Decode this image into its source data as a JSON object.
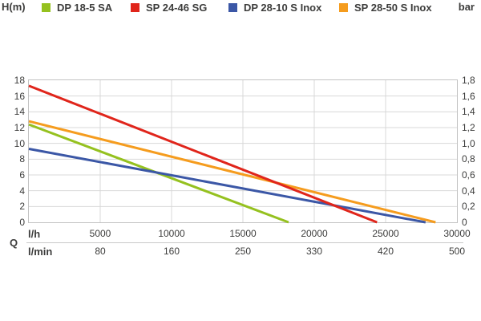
{
  "colors": {
    "text": "#3C3C3B",
    "grid": "#D8D8D8",
    "plot_border": "#C2C2C2",
    "green": "#95C11F",
    "red": "#E0251B",
    "blue": "#3B57A6",
    "orange": "#F59C1E"
  },
  "legend": {
    "left_axis_title": "H(m)",
    "right_axis_title": "bar",
    "items": [
      {
        "label": "DP 18-5 SA",
        "color": "#95C11F"
      },
      {
        "label": "SP 24-46 SG",
        "color": "#E0251B"
      },
      {
        "label": "DP 28-10 S Inox",
        "color": "#3B57A6"
      },
      {
        "label": "SP 28-50 S Inox",
        "color": "#F59C1E"
      }
    ]
  },
  "x_axis": {
    "label": "Q",
    "unit_rows": [
      {
        "unit": "l/h",
        "ticks": [
          5000,
          10000,
          15000,
          20000,
          25000,
          30000
        ]
      },
      {
        "unit": "l/min",
        "ticks": [
          80,
          160,
          250,
          330,
          420,
          500
        ]
      }
    ]
  },
  "chart_data": {
    "type": "line",
    "title": "",
    "xlabel": "Q",
    "x_units": [
      "l/h",
      "l/min"
    ],
    "xlim_lh": [
      0,
      30000
    ],
    "x_ticks_lh": [
      5000,
      10000,
      15000,
      20000,
      25000,
      30000
    ],
    "x_ticks_lmin": [
      80,
      160,
      250,
      330,
      420,
      500
    ],
    "ylabel_left": "H(m)",
    "ylabel_right": "bar",
    "ylim": [
      0,
      18
    ],
    "y_ticks_left": [
      18,
      16,
      14,
      12,
      10,
      8,
      6,
      4,
      2,
      0
    ],
    "y_ticks_right": [
      "1,8",
      "1,6",
      "1,4",
      "1,2",
      "1,0",
      "0,8",
      "0,6",
      "0,4",
      "0,2",
      "0"
    ],
    "grid": true,
    "legend_position": "top",
    "series": [
      {
        "name": "DP 18-5 SA",
        "color": "#95C11F",
        "points_lh_m": [
          [
            0,
            12.4
          ],
          [
            18200,
            0
          ]
        ]
      },
      {
        "name": "DP 28-10 S Inox",
        "color": "#3B57A6",
        "points_lh_m": [
          [
            0,
            9.3
          ],
          [
            27800,
            0
          ]
        ]
      },
      {
        "name": "SP 28-50 S Inox",
        "color": "#F59C1E",
        "points_lh_m": [
          [
            0,
            12.8
          ],
          [
            28500,
            0
          ]
        ]
      },
      {
        "name": "SP 24-46 SG",
        "color": "#E0251B",
        "points_lh_m": [
          [
            0,
            17.3
          ],
          [
            24400,
            0
          ]
        ]
      }
    ]
  }
}
